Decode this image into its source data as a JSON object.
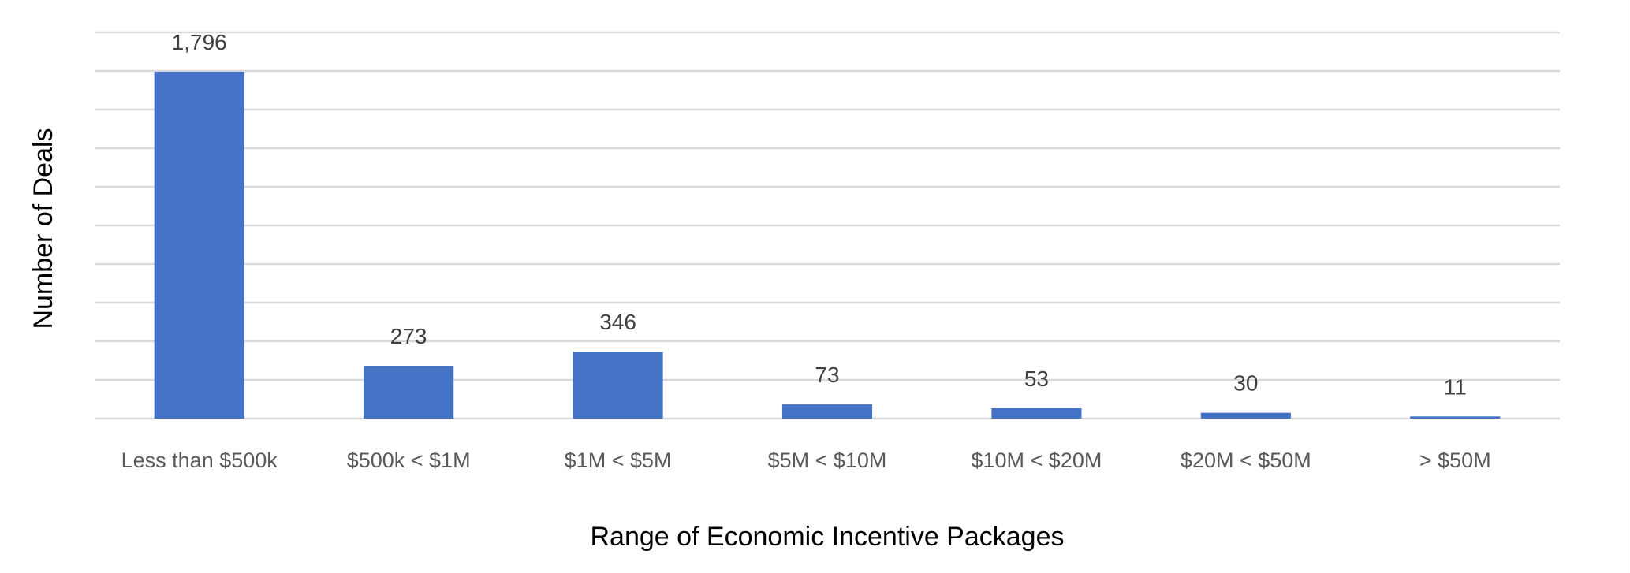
{
  "chart_data": {
    "type": "bar",
    "title": "",
    "xlabel": "Range of Economic Incentive Packages",
    "ylabel": "Number of Deals",
    "categories": [
      "Less than $500k",
      "$500k < $1M",
      "$1M < $5M",
      "$5M < $10M",
      "$10M < $20M",
      "$20M < $50M",
      "> $50M"
    ],
    "values": [
      1796,
      273,
      346,
      73,
      53,
      30,
      11
    ],
    "data_labels": [
      "1,796",
      "273",
      "346",
      "73",
      "53",
      "30",
      "11"
    ],
    "ylim": [
      0,
      2000
    ],
    "ytick_step": 200,
    "y_tick_labels_shown": false,
    "grid": true,
    "legend": "none",
    "colors": {
      "bar": "#4472C4",
      "grid": "#D9D9D9",
      "label": "#404040",
      "axis_title": "#000000"
    }
  }
}
